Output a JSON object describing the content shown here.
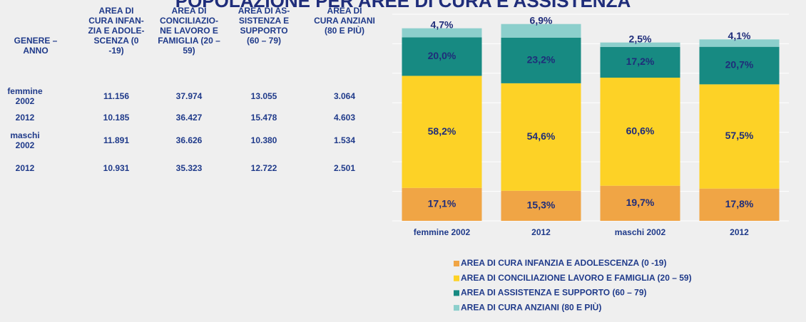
{
  "title": "POPOLAZIONE PER AREE DI CURA E ASSISTENZA",
  "table": {
    "header": [
      "GENERE –\nANNO",
      "AREA DI\nCURA INFAN-\nZIA E ADOLE-\nSCENZA (0\n-19)",
      "AREA DI\nCONCILIAZIO-\nNE LAVORO E\nFAMIGLIA (20 –\n59)",
      "AREA DI AS-\nSISTENZA E\nSUPPORTO\n(60 – 79)",
      "AREA DI\nCURA ANZIANI\n(80 E PIÙ)"
    ],
    "rows": [
      {
        "label": "femmine\n2002",
        "cells": [
          {
            "value": 11156,
            "label": "11.156"
          },
          {
            "value": 37974,
            "label": "37.974"
          },
          {
            "value": 13055,
            "label": "13.055"
          },
          {
            "value": 3064,
            "label": "3.064"
          }
        ]
      },
      {
        "label": "2012",
        "cells": [
          {
            "value": 10185,
            "label": "10.185"
          },
          {
            "value": 36427,
            "label": "36.427"
          },
          {
            "value": 15478,
            "label": "15.478"
          },
          {
            "value": 4603,
            "label": "4.603"
          }
        ]
      },
      {
        "label": "maschi\n2002",
        "cells": [
          {
            "value": 11891,
            "label": "11.891"
          },
          {
            "value": 36626,
            "label": "36.626"
          },
          {
            "value": 10380,
            "label": "10.380"
          },
          {
            "value": 1534,
            "label": "1.534"
          }
        ]
      },
      {
        "label": "2012",
        "cells": [
          {
            "value": 10931,
            "label": "10.931"
          },
          {
            "value": 35323,
            "label": "35.323"
          },
          {
            "value": 12722,
            "label": "12.722"
          },
          {
            "value": 2501,
            "label": "2.501"
          }
        ]
      }
    ]
  },
  "chart_data": {
    "type": "stacked_bar",
    "categories": [
      "femmine 2002",
      "2012",
      "maschi 2002",
      "2012"
    ],
    "series": [
      {
        "name": "AREA DI CURA INFANZIA E ADOLESCENZA (0 -19)",
        "color": "#f0a545",
        "values": [
          17.1,
          15.3,
          19.7,
          17.8
        ],
        "value_labels": [
          "17,1%",
          "15,3%",
          "19,7%",
          "17,8%"
        ]
      },
      {
        "name": "AREA DI CONCILIAZIONE LAVORO E FAMIGLIA (20 – 59)",
        "color": "#fdd226",
        "values": [
          58.2,
          54.6,
          60.6,
          57.5
        ],
        "value_labels": [
          "58,2%",
          "54,6%",
          "60,6%",
          "57,5%"
        ]
      },
      {
        "name": "AREA DI ASSISTENZA E SUPPORTO (60 – 79)",
        "color": "#178a82",
        "values": [
          20.0,
          23.2,
          17.2,
          20.7
        ],
        "value_labels": [
          "20,0%",
          "23,2%",
          "17,2%",
          "20,7%"
        ]
      },
      {
        "name": "AREA DI CURA ANZIANI (80 E PIÙ)",
        "color": "#8ccfcc",
        "values": [
          4.7,
          6.9,
          2.5,
          4.1
        ],
        "value_labels": [
          "4,7%",
          "6,9%",
          "2,5%",
          "4,1%"
        ]
      }
    ],
    "ylim": [
      0,
      70000
    ],
    "yticks": [
      0,
      10000,
      20000,
      30000,
      40000,
      50000,
      60000,
      70000
    ],
    "grid": true
  }
}
